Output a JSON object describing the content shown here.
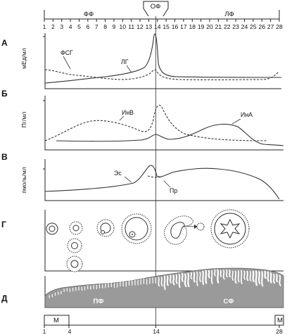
{
  "top_axis": {
    "days": [
      "1",
      "2",
      "3",
      "4",
      "5",
      "6",
      "7",
      "8",
      "9",
      "10",
      "11",
      "12",
      "13",
      "14",
      "15",
      "16",
      "17",
      "18",
      "19",
      "20",
      "21",
      "22",
      "23",
      "24",
      "25",
      "26",
      "27",
      "28"
    ],
    "phase_left": "ФФ",
    "phase_mid": "ОФ",
    "phase_right": "ЛФ"
  },
  "panels": {
    "a": {
      "letter": "А",
      "ylabel": "мЕд/мл",
      "curve1": "ФСГ",
      "curve2": "ЛГ"
    },
    "b": {
      "letter": "Б",
      "ylabel": "Пг/мл",
      "curve1": "ИнВ",
      "curve2": "ИнА"
    },
    "v": {
      "letter": "В",
      "ylabel": "пмоль/мл",
      "curve1": "Эс",
      "curve2": "Пр"
    },
    "g": {
      "letter": "Г"
    },
    "d": {
      "letter": "Д",
      "label_left": "ПФ",
      "label_right": "СФ"
    }
  },
  "bottom_axis": {
    "tick_1": "1",
    "tick_4": "4",
    "tick_14": "14",
    "tick_28": "28",
    "menses_left": "М",
    "menses_right": "М"
  },
  "colors": {
    "endometrium": "#9a9a9a",
    "line": "#333333"
  }
}
